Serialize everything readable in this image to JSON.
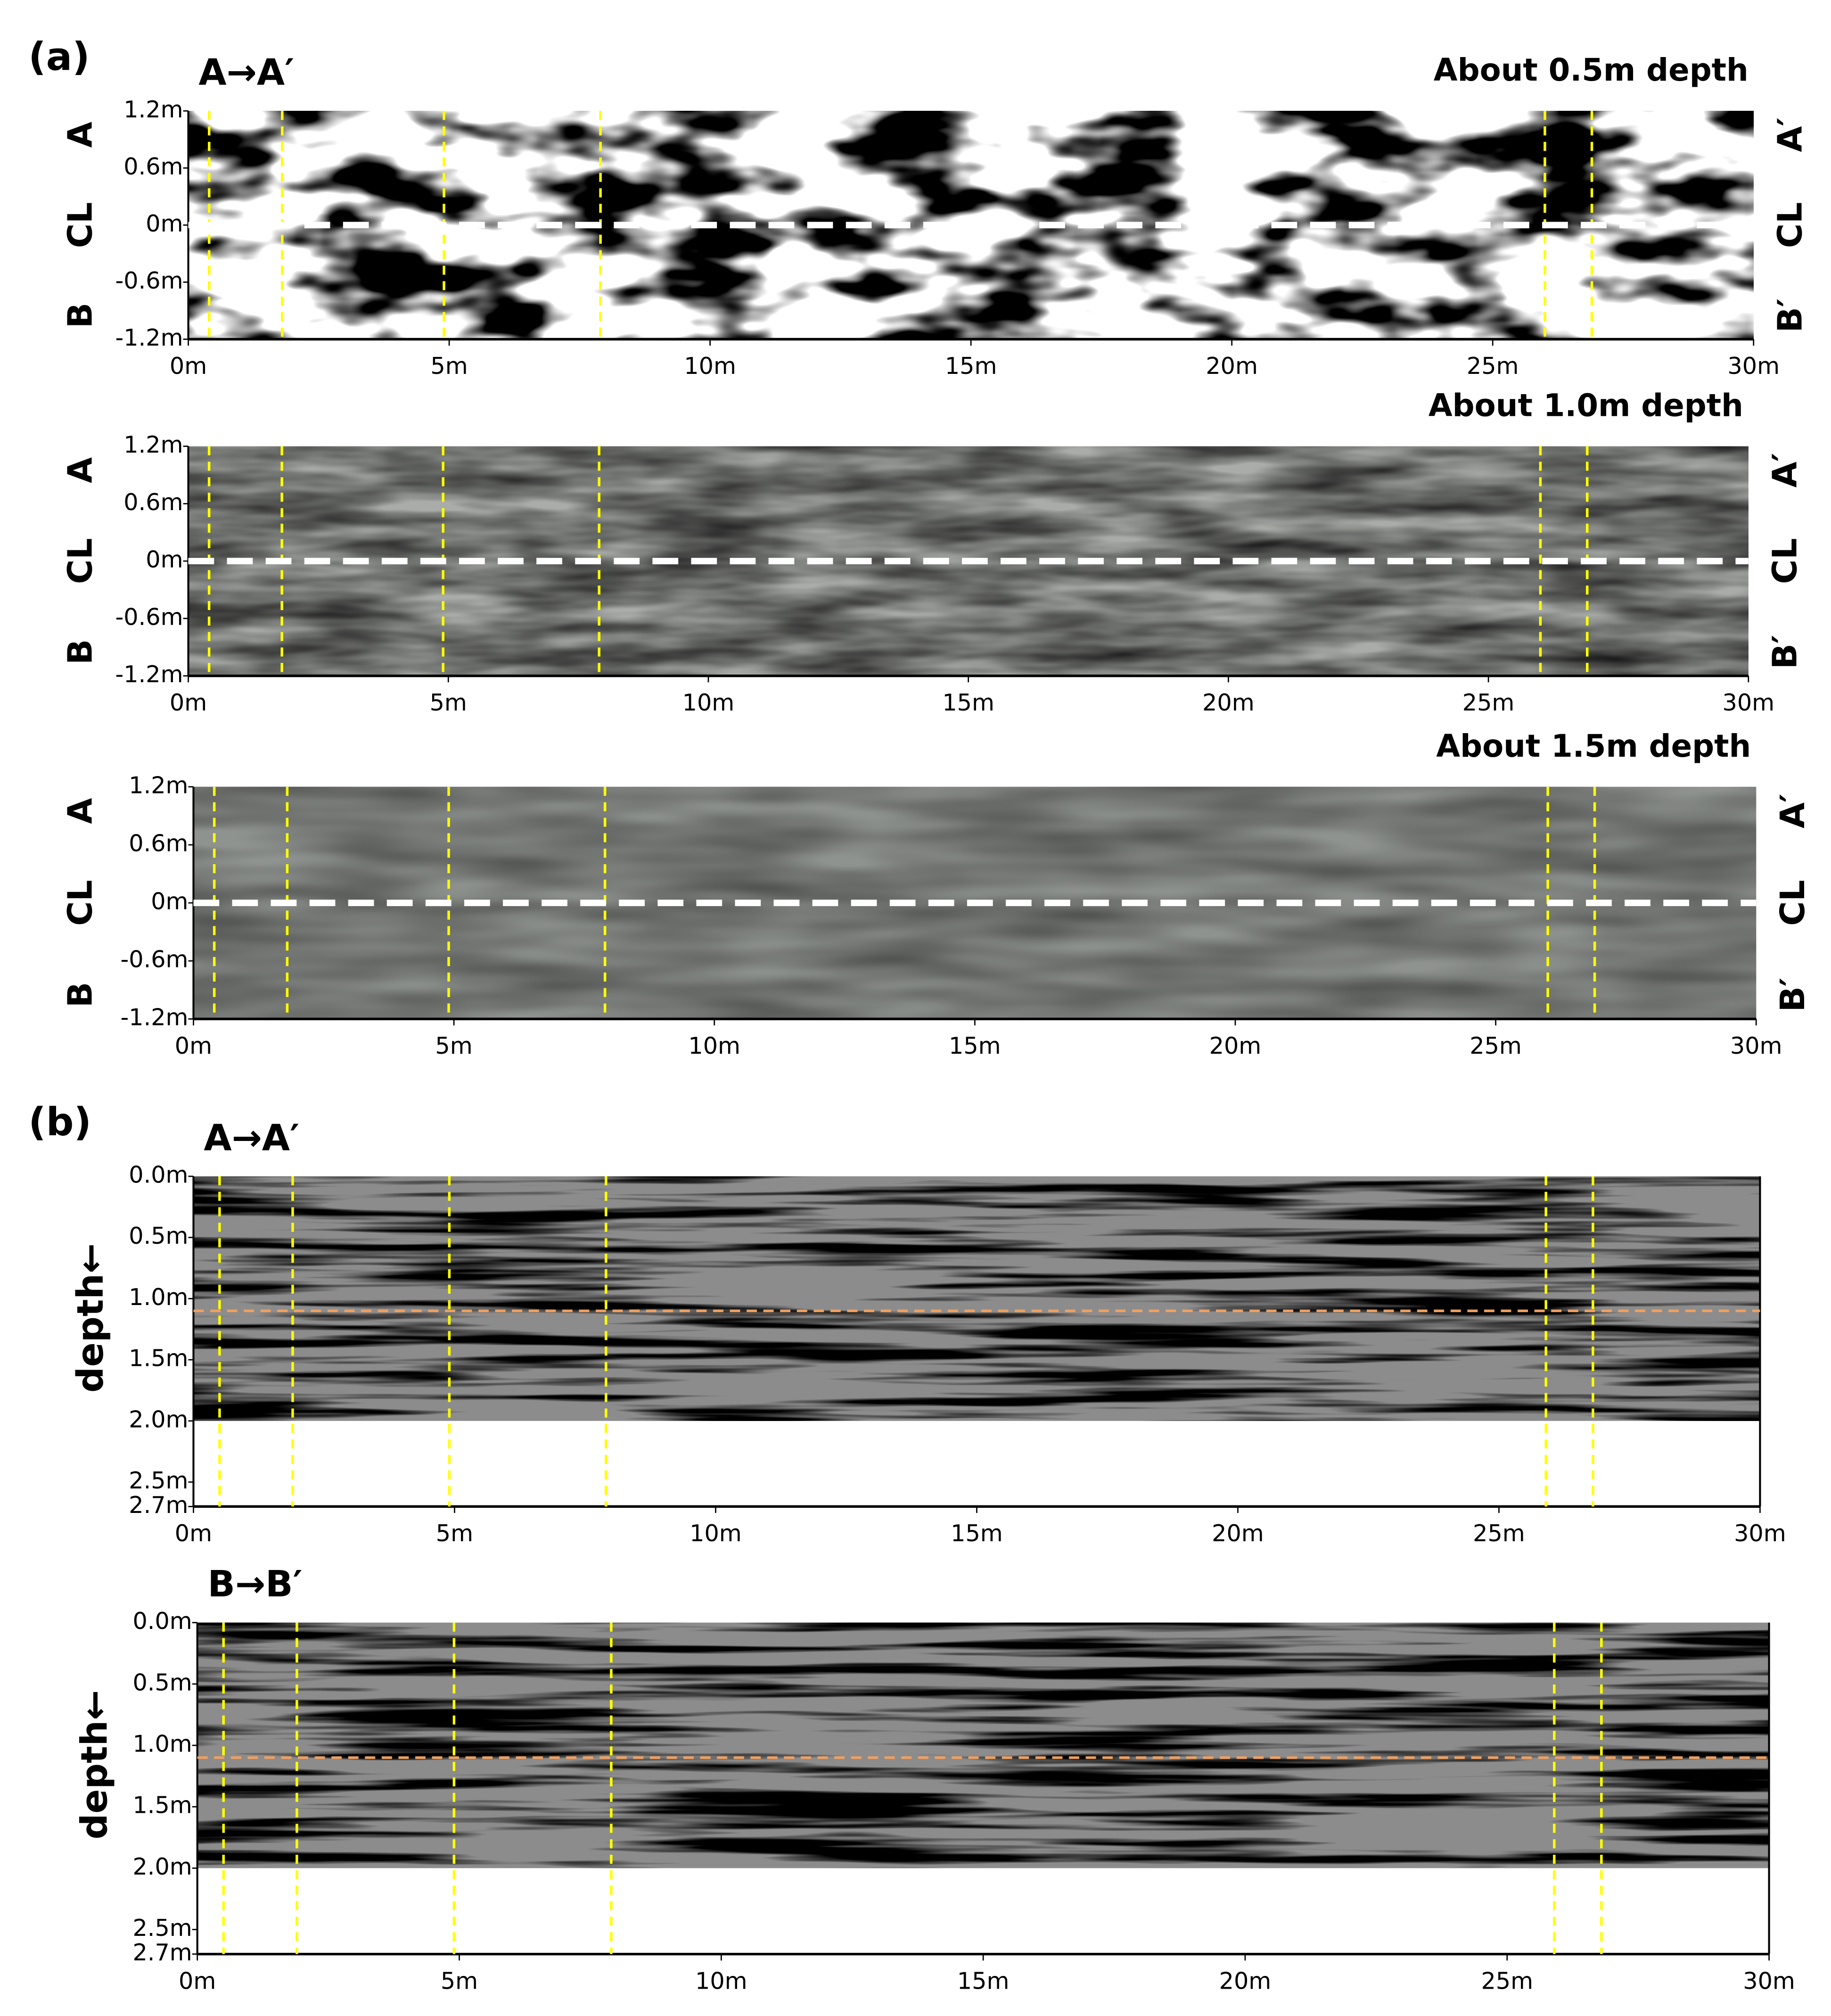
{
  "figure": {
    "panel_labels": [
      "(a)",
      "(b)"
    ]
  },
  "chart_data": [
    {
      "type": "heatmap",
      "title": "About 0.5m depth",
      "annotation": "A→A′",
      "left_labels": [
        "A",
        "CL",
        "B"
      ],
      "right_labels": [
        "A′",
        "CL",
        "B′"
      ],
      "xlim": [
        0,
        30
      ],
      "xticks": [
        {
          "value": 0,
          "label": "0m"
        },
        {
          "value": 5,
          "label": "5m"
        },
        {
          "value": 10,
          "label": "10m"
        },
        {
          "value": 15,
          "label": "15m"
        },
        {
          "value": 20,
          "label": "20m"
        },
        {
          "value": 25,
          "label": "25m"
        },
        {
          "value": 30,
          "label": "30m"
        }
      ],
      "ylim": [
        -1.2,
        1.2
      ],
      "yticks": [
        {
          "value": 1.2,
          "label": "1.2m"
        },
        {
          "value": 0.6,
          "label": "0.6m"
        },
        {
          "value": 0,
          "label": "0m"
        },
        {
          "value": -0.6,
          "label": "-0.6m"
        },
        {
          "value": -1.2,
          "label": "-1.2m"
        }
      ],
      "markers_x": [
        0.4,
        1.8,
        4.9,
        7.9,
        26.0,
        26.9
      ],
      "marker_color": "#ffff00",
      "centerline": 0,
      "centerline_color": "#ffffff"
    },
    {
      "type": "heatmap",
      "title": "About 1.0m depth",
      "left_labels": [
        "A",
        "CL",
        "B"
      ],
      "right_labels": [
        "A′",
        "CL",
        "B′"
      ],
      "xlim": [
        0,
        30
      ],
      "xticks": [
        {
          "value": 0,
          "label": "0m"
        },
        {
          "value": 5,
          "label": "5m"
        },
        {
          "value": 10,
          "label": "10m"
        },
        {
          "value": 15,
          "label": "15m"
        },
        {
          "value": 20,
          "label": "20m"
        },
        {
          "value": 25,
          "label": "25m"
        },
        {
          "value": 30,
          "label": "30m"
        }
      ],
      "ylim": [
        -1.2,
        1.2
      ],
      "yticks": [
        {
          "value": 1.2,
          "label": "1.2m"
        },
        {
          "value": 0.6,
          "label": "0.6m"
        },
        {
          "value": 0,
          "label": "0m"
        },
        {
          "value": -0.6,
          "label": "-0.6m"
        },
        {
          "value": -1.2,
          "label": "-1.2m"
        }
      ],
      "markers_x": [
        0.4,
        1.8,
        4.9,
        7.9,
        26.0,
        26.9
      ],
      "marker_color": "#ffff00",
      "centerline": 0,
      "centerline_color": "#ffffff"
    },
    {
      "type": "heatmap",
      "title": "About 1.5m depth",
      "left_labels": [
        "A",
        "CL",
        "B"
      ],
      "right_labels": [
        "A′",
        "CL",
        "B′"
      ],
      "xlim": [
        0,
        30
      ],
      "xticks": [
        {
          "value": 0,
          "label": "0m"
        },
        {
          "value": 5,
          "label": "5m"
        },
        {
          "value": 10,
          "label": "10m"
        },
        {
          "value": 15,
          "label": "15m"
        },
        {
          "value": 20,
          "label": "20m"
        },
        {
          "value": 25,
          "label": "25m"
        },
        {
          "value": 30,
          "label": "30m"
        }
      ],
      "ylim": [
        -1.2,
        1.2
      ],
      "yticks": [
        {
          "value": 1.2,
          "label": "1.2m"
        },
        {
          "value": 0.6,
          "label": "0.6m"
        },
        {
          "value": 0,
          "label": "0m"
        },
        {
          "value": -0.6,
          "label": "-0.6m"
        },
        {
          "value": -1.2,
          "label": "-1.2m"
        }
      ],
      "markers_x": [
        0.4,
        1.8,
        4.9,
        7.9,
        26.0,
        26.9
      ],
      "marker_color": "#ffff00",
      "centerline": 0,
      "centerline_color": "#ffffff"
    },
    {
      "type": "radargram",
      "annotation": "A→A′",
      "y_label": "depth←",
      "xlim": [
        0,
        30
      ],
      "xticks": [
        {
          "value": 0,
          "label": "0m"
        },
        {
          "value": 5,
          "label": "5m"
        },
        {
          "value": 10,
          "label": "10m"
        },
        {
          "value": 15,
          "label": "15m"
        },
        {
          "value": 20,
          "label": "20m"
        },
        {
          "value": 25,
          "label": "25m"
        },
        {
          "value": 30,
          "label": "30m"
        }
      ],
      "ylim": [
        0,
        2.7
      ],
      "yticks": [
        {
          "value": 0,
          "label": "0.0m"
        },
        {
          "value": 0.5,
          "label": "0.5m"
        },
        {
          "value": 1,
          "label": "1.0m"
        },
        {
          "value": 1.5,
          "label": "1.5m"
        },
        {
          "value": 2,
          "label": "2.0m"
        },
        {
          "value": 2.5,
          "label": "2.5m"
        },
        {
          "value": 2.7,
          "label": "2.7m"
        }
      ],
      "data_depth": 2,
      "markers_x": [
        0.5,
        1.9,
        4.9,
        7.9,
        25.9,
        26.8
      ],
      "marker_color": "#ffff00",
      "reference_depth": 1.1,
      "reference_color": "#f0a060"
    },
    {
      "type": "radargram",
      "annotation": "B→B′",
      "y_label": "depth←",
      "xlim": [
        0,
        30
      ],
      "xticks": [
        {
          "value": 0,
          "label": "0m"
        },
        {
          "value": 5,
          "label": "5m"
        },
        {
          "value": 10,
          "label": "10m"
        },
        {
          "value": 15,
          "label": "15m"
        },
        {
          "value": 20,
          "label": "20m"
        },
        {
          "value": 25,
          "label": "25m"
        },
        {
          "value": 30,
          "label": "30m"
        }
      ],
      "ylim": [
        0,
        2.7
      ],
      "yticks": [
        {
          "value": 0,
          "label": "0.0m"
        },
        {
          "value": 0.5,
          "label": "0.5m"
        },
        {
          "value": 1,
          "label": "1.0m"
        },
        {
          "value": 1.5,
          "label": "1.5m"
        },
        {
          "value": 2,
          "label": "2.0m"
        },
        {
          "value": 2.5,
          "label": "2.5m"
        },
        {
          "value": 2.7,
          "label": "2.7m"
        }
      ],
      "data_depth": 2,
      "markers_x": [
        0.5,
        1.9,
        4.9,
        7.9,
        25.9,
        26.8
      ],
      "marker_color": "#ffff00",
      "reference_depth": 1.1,
      "reference_color": "#f0a060"
    }
  ]
}
